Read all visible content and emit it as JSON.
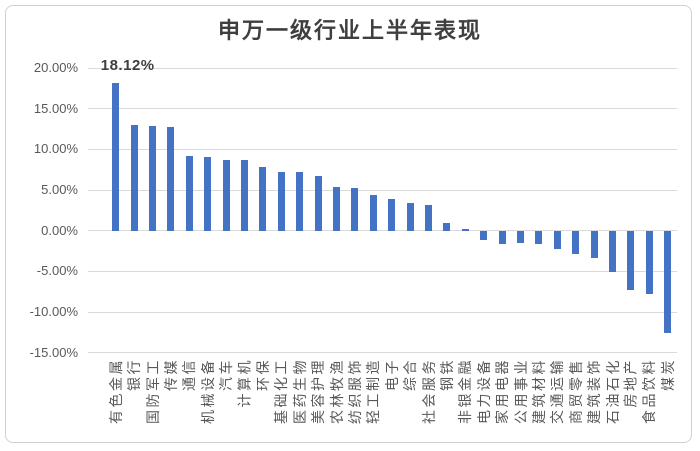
{
  "chart_data": {
    "type": "bar",
    "title": "申万一级行业上半年表现",
    "categories": [
      "有色金属",
      "银行",
      "国防军工",
      "传媒",
      "通信",
      "机械设备",
      "汽车",
      "计算机",
      "环保",
      "基础化工",
      "医药生物",
      "美容护理",
      "农林牧渔",
      "纺织服饰",
      "轻工制造",
      "电子",
      "综合",
      "社会服务",
      "钢铁",
      "非银金融",
      "电力设备",
      "家用电器",
      "公用事业",
      "建筑材料",
      "交通运输",
      "商贸零售",
      "建筑装饰",
      "石油石化",
      "房地产",
      "食品饮料",
      "煤炭"
    ],
    "values": [
      18.12,
      13.0,
      12.9,
      12.7,
      9.2,
      9.0,
      8.7,
      8.7,
      7.8,
      7.2,
      7.2,
      6.7,
      5.4,
      5.3,
      4.4,
      3.9,
      3.4,
      3.2,
      0.9,
      0.2,
      -1.1,
      -1.6,
      -1.5,
      -1.6,
      -2.2,
      -2.9,
      -3.4,
      -5.1,
      -7.3,
      -7.8,
      -12.6
    ],
    "y_ticks": [
      "20.00%",
      "15.00%",
      "10.00%",
      "5.00%",
      "0.00%",
      "-5.00%",
      "-10.00%",
      "-15.00%"
    ],
    "y_tick_values": [
      20,
      15,
      10,
      5,
      0,
      -5,
      -10,
      -15
    ],
    "ylim": [
      -15,
      20
    ],
    "grid": true,
    "legend": false,
    "bar_color": "#4472C4",
    "data_labels": [
      {
        "index": 0,
        "text": "18.12%"
      }
    ]
  }
}
